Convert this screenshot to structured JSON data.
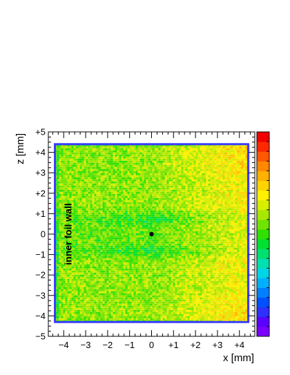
{
  "chart_data": {
    "type": "heatmap",
    "xlabel": "x [mm]",
    "ylabel": "z [mm]",
    "xlim": [
      -4.7,
      4.7
    ],
    "ylim": [
      -5,
      5
    ],
    "x_ticks": [
      {
        "value": -4,
        "label": "−4"
      },
      {
        "value": -3,
        "label": "−3"
      },
      {
        "value": -2,
        "label": "−2"
      },
      {
        "value": -1,
        "label": "−1"
      },
      {
        "value": 0,
        "label": "0"
      },
      {
        "value": 1,
        "label": "+1"
      },
      {
        "value": 2,
        "label": "+2"
      },
      {
        "value": 3,
        "label": "+3"
      },
      {
        "value": 4,
        "label": "+4"
      }
    ],
    "y_ticks": [
      {
        "value": 5,
        "label": "+5"
      },
      {
        "value": 4,
        "label": "+4"
      },
      {
        "value": 3,
        "label": "+3"
      },
      {
        "value": 2,
        "label": "+2"
      },
      {
        "value": 1,
        "label": "+1"
      },
      {
        "value": 0,
        "label": "0"
      },
      {
        "value": -1,
        "label": "−1"
      },
      {
        "value": -2,
        "label": "−2"
      },
      {
        "value": -3,
        "label": "−3"
      },
      {
        "value": -4,
        "label": "−4"
      },
      {
        "value": -5,
        "label": "−5"
      }
    ],
    "filled_region": {
      "x": [
        -4.4,
        4.4
      ],
      "z": [
        -4.3,
        4.4
      ]
    },
    "center_marker": {
      "x": 0,
      "z": 0
    },
    "annotation": {
      "text": "inner  foil  wall",
      "x": -3.8,
      "z": 0,
      "orientation": "vertical"
    },
    "palette": [
      "#7b00ff",
      "#5a00ff",
      "#2f2fff",
      "#0050ff",
      "#0080ff",
      "#00b0ff",
      "#00d5e6",
      "#00e0b0",
      "#00e070",
      "#00e030",
      "#30e000",
      "#70e400",
      "#a8e800",
      "#d6ee00",
      "#fff000",
      "#ffd400",
      "#ffb000",
      "#ff8800",
      "#ff5800",
      "#ff2800",
      "#f00000"
    ],
    "legend": "color bar on the right"
  }
}
